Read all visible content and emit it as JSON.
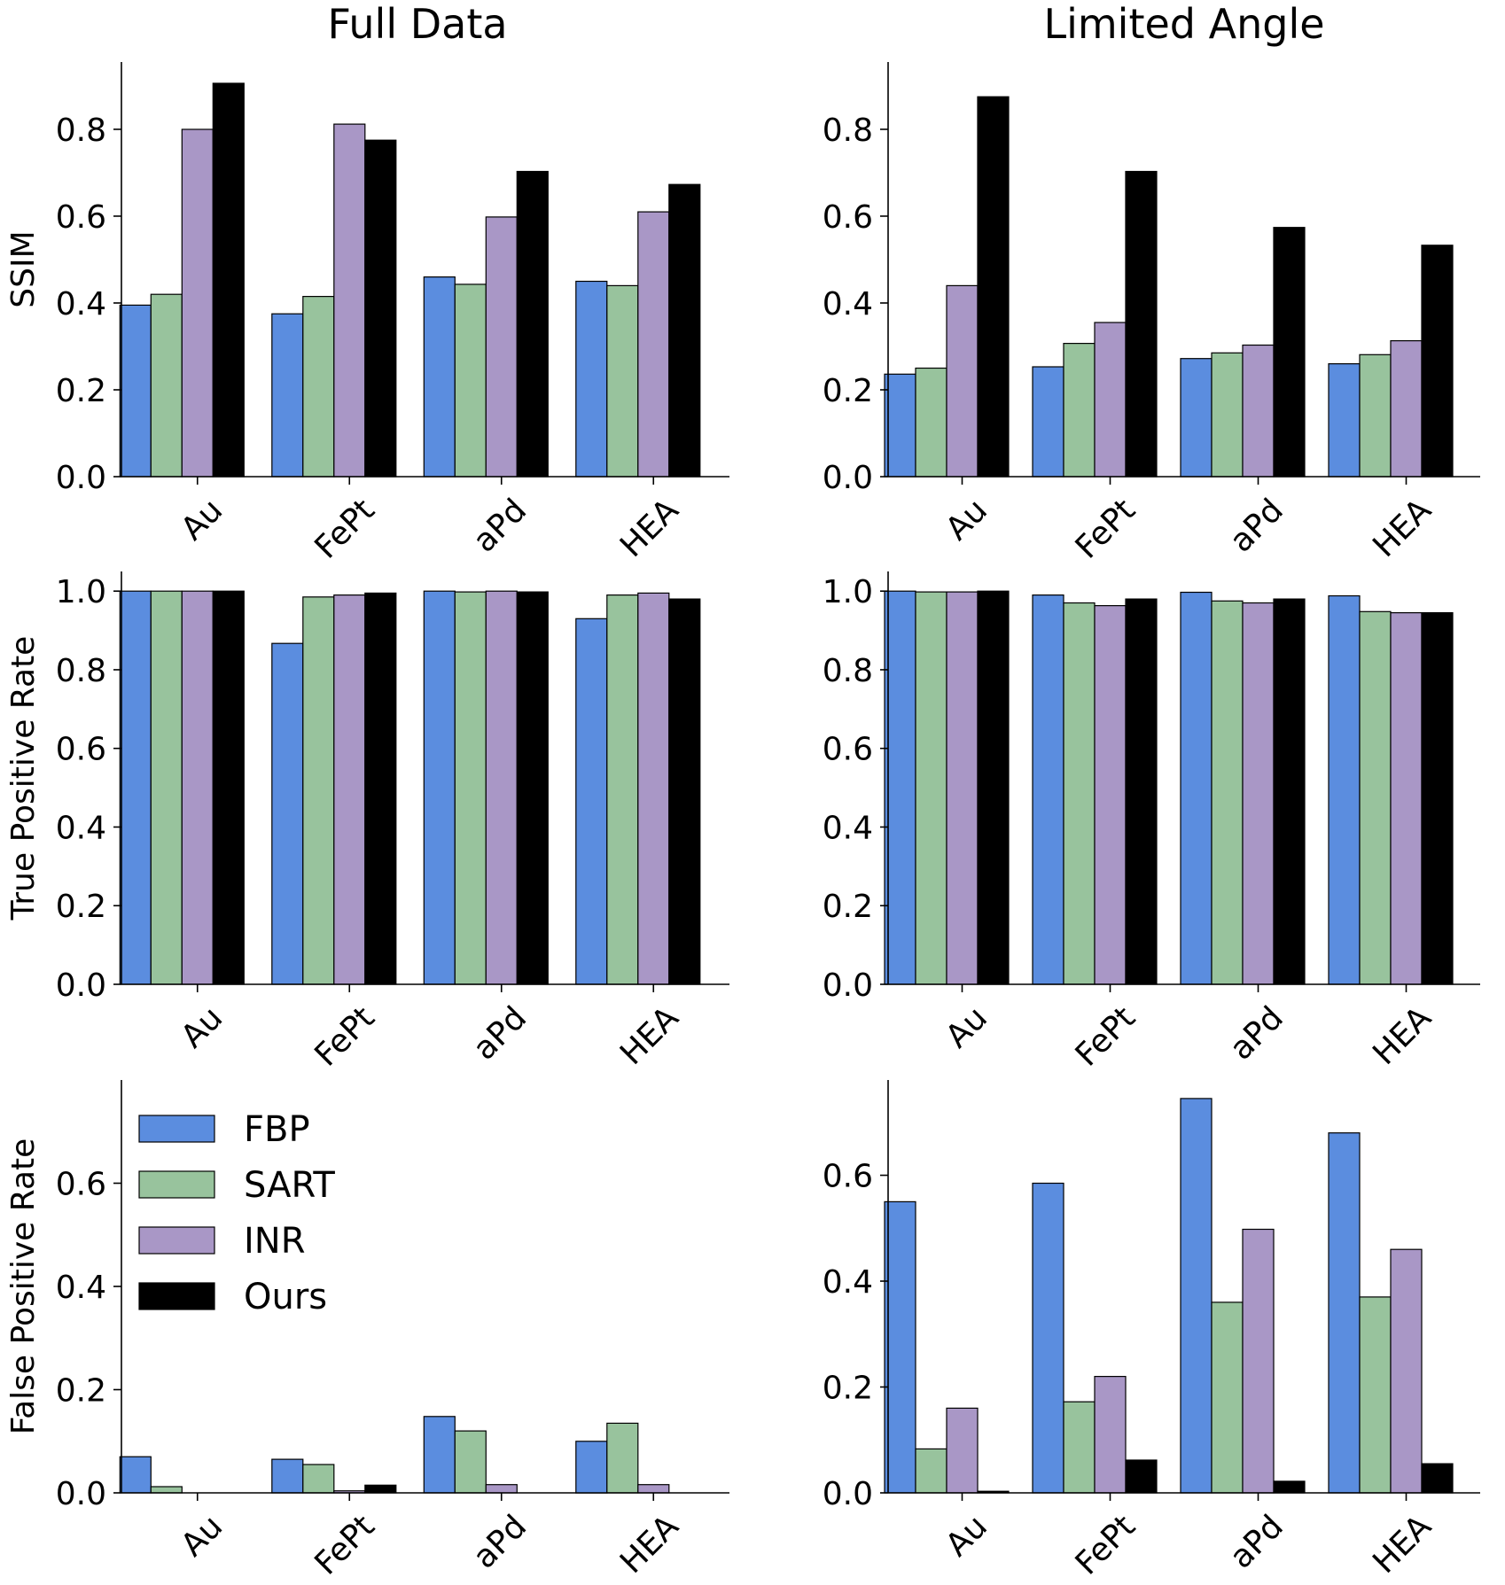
{
  "colors": {
    "FBP": "#5b8ddf",
    "SART": "#98c39d",
    "INR": "#a997c6",
    "Ours": "#000000"
  },
  "column_titles": [
    "Full Data",
    "Limited Angle"
  ],
  "legend": {
    "location": "upper-left of bottom-left panel",
    "entries": [
      "FBP",
      "SART",
      "INR",
      "Ours"
    ]
  },
  "chart_data": [
    {
      "type": "bar",
      "row": 0,
      "col": 0,
      "title": "Full Data",
      "ylabel": "SSIM",
      "categories": [
        "Au",
        "FePt",
        "aPd",
        "HEA"
      ],
      "ylim": [
        0,
        0.955
      ],
      "yticks": [
        "0.0",
        "0.2",
        "0.4",
        "0.6",
        "0.8"
      ],
      "series": [
        {
          "name": "FBP",
          "values": [
            0.395,
            0.375,
            0.46,
            0.45
          ]
        },
        {
          "name": "SART",
          "values": [
            0.42,
            0.415,
            0.443,
            0.44
          ]
        },
        {
          "name": "INR",
          "values": [
            0.8,
            0.812,
            0.598,
            0.61
          ]
        },
        {
          "name": "Ours",
          "values": [
            0.906,
            0.775,
            0.703,
            0.673
          ]
        }
      ]
    },
    {
      "type": "bar",
      "row": 0,
      "col": 1,
      "title": "Limited Angle",
      "ylabel": "",
      "categories": [
        "Au",
        "FePt",
        "aPd",
        "HEA"
      ],
      "ylim": [
        0,
        0.955
      ],
      "yticks": [
        "0.0",
        "0.2",
        "0.4",
        "0.6",
        "0.8"
      ],
      "series": [
        {
          "name": "FBP",
          "values": [
            0.236,
            0.253,
            0.272,
            0.26
          ]
        },
        {
          "name": "SART",
          "values": [
            0.25,
            0.307,
            0.285,
            0.281
          ]
        },
        {
          "name": "INR",
          "values": [
            0.44,
            0.355,
            0.303,
            0.313
          ]
        },
        {
          "name": "Ours",
          "values": [
            0.875,
            0.703,
            0.574,
            0.533
          ]
        }
      ]
    },
    {
      "type": "bar",
      "row": 1,
      "col": 0,
      "ylabel": "True Positive Rate",
      "categories": [
        "Au",
        "FePt",
        "aPd",
        "HEA"
      ],
      "ylim": [
        0,
        1.05
      ],
      "yticks": [
        "0.0",
        "0.2",
        "0.4",
        "0.6",
        "0.8",
        "1.0"
      ],
      "series": [
        {
          "name": "FBP",
          "values": [
            1.0,
            0.867,
            1.0,
            0.93
          ]
        },
        {
          "name": "SART",
          "values": [
            1.0,
            0.985,
            0.998,
            0.99
          ]
        },
        {
          "name": "INR",
          "values": [
            1.0,
            0.99,
            1.0,
            0.995
          ]
        },
        {
          "name": "Ours",
          "values": [
            1.0,
            0.995,
            0.998,
            0.98
          ]
        }
      ]
    },
    {
      "type": "bar",
      "row": 1,
      "col": 1,
      "ylabel": "",
      "categories": [
        "Au",
        "FePt",
        "aPd",
        "HEA"
      ],
      "ylim": [
        0,
        1.05
      ],
      "yticks": [
        "0.0",
        "0.2",
        "0.4",
        "0.6",
        "0.8",
        "1.0"
      ],
      "series": [
        {
          "name": "FBP",
          "values": [
            1.0,
            0.99,
            0.997,
            0.988
          ]
        },
        {
          "name": "SART",
          "values": [
            0.998,
            0.97,
            0.975,
            0.948
          ]
        },
        {
          "name": "INR",
          "values": [
            0.998,
            0.963,
            0.97,
            0.945
          ]
        },
        {
          "name": "Ours",
          "values": [
            1.0,
            0.98,
            0.98,
            0.945
          ]
        }
      ]
    },
    {
      "type": "bar",
      "row": 2,
      "col": 0,
      "ylabel": "False Positive Rate",
      "categories": [
        "Au",
        "FePt",
        "aPd",
        "HEA"
      ],
      "ylim": [
        0,
        0.8
      ],
      "yticks": [
        "0.0",
        "0.2",
        "0.4",
        "0.6"
      ],
      "series": [
        {
          "name": "FBP",
          "values": [
            0.07,
            0.065,
            0.148,
            0.1
          ]
        },
        {
          "name": "SART",
          "values": [
            0.012,
            0.055,
            0.12,
            0.135
          ]
        },
        {
          "name": "INR",
          "values": [
            0.0,
            0.004,
            0.016,
            0.016
          ]
        },
        {
          "name": "Ours",
          "values": [
            0.0,
            0.015,
            0.0,
            0.0
          ]
        }
      ]
    },
    {
      "type": "bar",
      "row": 2,
      "col": 1,
      "ylabel": "",
      "categories": [
        "Au",
        "FePt",
        "aPd",
        "HEA"
      ],
      "ylim": [
        0,
        0.78
      ],
      "yticks": [
        "0.0",
        "0.2",
        "0.4",
        "0.6"
      ],
      "series": [
        {
          "name": "FBP",
          "values": [
            0.55,
            0.585,
            0.745,
            0.68
          ]
        },
        {
          "name": "SART",
          "values": [
            0.083,
            0.172,
            0.36,
            0.37
          ]
        },
        {
          "name": "INR",
          "values": [
            0.16,
            0.22,
            0.498,
            0.46
          ]
        },
        {
          "name": "Ours",
          "values": [
            0.003,
            0.062,
            0.022,
            0.055
          ]
        }
      ]
    }
  ]
}
